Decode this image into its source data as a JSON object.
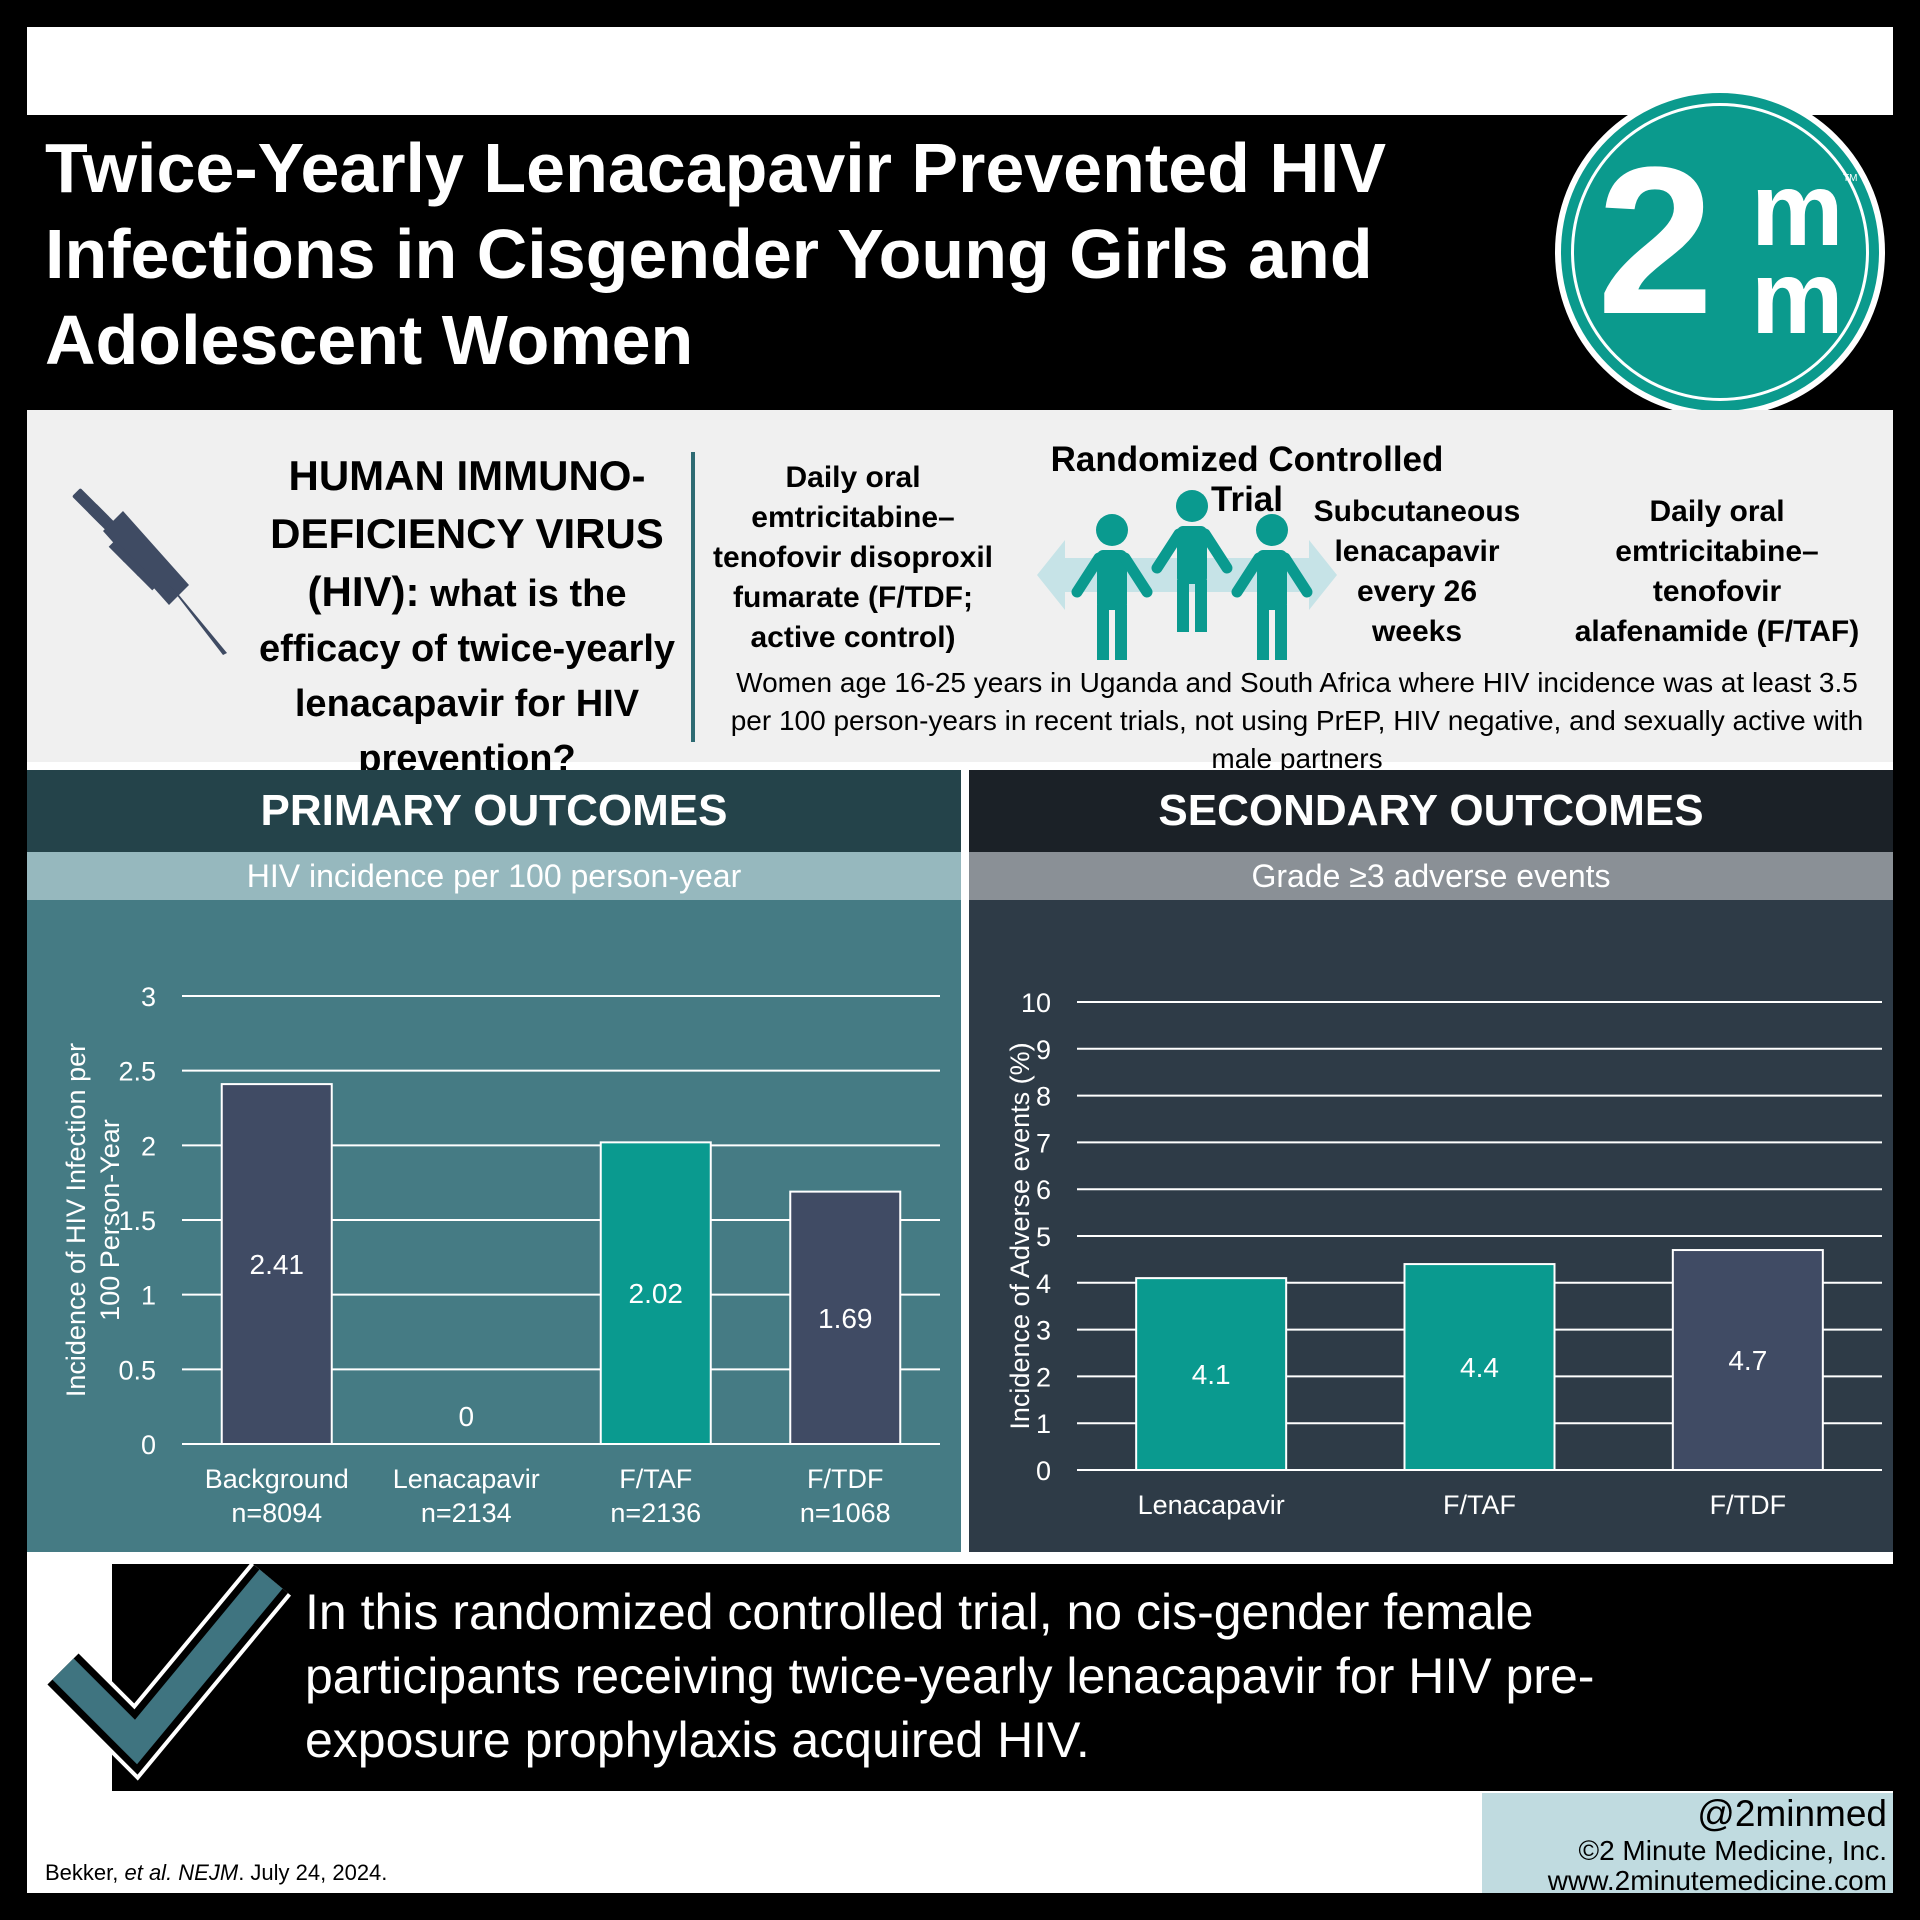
{
  "title": "Twice-Yearly Lenacapavir Prevented HIV Infections in Cisgender Young Girls and Adolescent Women",
  "logo": {
    "digit": "2",
    "m1": "m",
    "m2": "m",
    "tm": "TM"
  },
  "question": {
    "prefix": "HUMAN IMMUNO-DEFICIENCY VIRUS (HIV):",
    "text": " what is the efficacy of twice-yearly lenacapavir for HIV prevention?"
  },
  "design": "Randomized Controlled Trial",
  "arms": {
    "control": "Daily oral emtricitabine–tenofovir disoproxil fumarate (F/TDF; active control)",
    "intervention": "Subcutaneous lenacapavir every 26 weeks",
    "comparator": "Daily oral emtricitabine–tenofovir alafenamide (F/TAF)"
  },
  "population": "Women age 16-25 years in Uganda and South Africa where HIV incidence was at least 3.5 per 100 person-years in recent trials, not using PrEP, HIV negative, and sexually active with male partners",
  "primary": {
    "heading": "PRIMARY OUTCOMES",
    "subheading": "HIV incidence per 100 person-year"
  },
  "secondary": {
    "heading": "SECONDARY OUTCOMES",
    "subheading": "Grade ≥3 adverse events"
  },
  "chart_data": [
    {
      "type": "bar",
      "ylabel": "Incidence of HIV Infection per 100 Person-Year",
      "categories": [
        "Background",
        "Lenacapavir",
        "F/TAF",
        "F/TDF"
      ],
      "sublabels": [
        "n=8094",
        "n=2134",
        "n=2136",
        "n=1068"
      ],
      "values": [
        2.41,
        0,
        2.02,
        1.69
      ],
      "value_labels": [
        "2.41",
        "0",
        "2.02",
        "1.69"
      ],
      "bar_colors": [
        "#404b64",
        "#404b64",
        "#0a9a8f",
        "#404b64"
      ],
      "ylim": [
        0,
        3
      ],
      "yticks": [
        0,
        0.5,
        1,
        1.5,
        2,
        2.5,
        3
      ],
      "ytick_labels": [
        "0",
        "0.5",
        "1",
        "1.5",
        "2",
        "2.5",
        "3"
      ],
      "grid": true
    },
    {
      "type": "bar",
      "ylabel": "Incidence of Adverse events (%)",
      "categories": [
        "Lenacapavir",
        "F/TAF",
        "F/TDF"
      ],
      "values": [
        4.1,
        4.4,
        4.7
      ],
      "value_labels": [
        "4.1",
        "4.4",
        "4.7"
      ],
      "bar_colors": [
        "#0a9a8f",
        "#0a9a8f",
        "#404b64"
      ],
      "ylim": [
        0,
        10
      ],
      "yticks": [
        0,
        1,
        2,
        3,
        4,
        5,
        6,
        7,
        8,
        9,
        10
      ],
      "ytick_labels": [
        "0",
        "1",
        "2",
        "3",
        "4",
        "5",
        "6",
        "7",
        "8",
        "9",
        "10"
      ],
      "grid": true
    }
  ],
  "conclusion": "In this randomized controlled trial, no cis-gender female participants receiving twice-yearly lenacapavir for HIV pre-exposure prophylaxis acquired HIV.",
  "footer": {
    "handle": "@2minmed",
    "copyright": "©2 Minute Medicine, Inc.",
    "website": "www.2minutemedicine.com",
    "citation_author": "Bekker, ",
    "citation_etal": "et al. NEJM",
    "citation_date": ". July 24, 2024."
  },
  "icons": [
    "syringe-icon",
    "people-icon",
    "checkmark-icon"
  ],
  "colors": {
    "teal": "#0a9a8f",
    "slate": "#404b64",
    "primary_panel": "#457b84",
    "secondary_panel": "#2e3b47"
  }
}
